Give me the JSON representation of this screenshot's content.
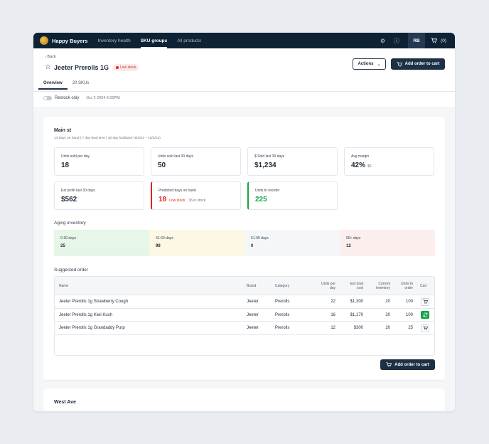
{
  "nav": {
    "brand": "Happy Buyers",
    "links": [
      "Inventory health",
      "SKU groups",
      "All products"
    ],
    "active": "SKU groups",
    "avatar": "RB",
    "cart_count": "(0)"
  },
  "header": {
    "back": "‹ Back",
    "title": "Jeeter Prerolls 1G",
    "badge": "Low stock",
    "actions_label": "Actions",
    "add_to_cart_label": "Add order to cart"
  },
  "tabs": [
    "Overview",
    "20 SKUs"
  ],
  "filter": {
    "toggle_label": "Restock only",
    "date": "Oct 2 2024 6:00PM"
  },
  "locations": [
    {
      "name": "Main st",
      "subtitle": "14 days on hand  |  7 day lead time  |  30 day lookback  (9/3/24 – 10/2/24)",
      "stats": [
        {
          "label": "Units sold per day",
          "value": "18"
        },
        {
          "label": "Units sold last 30 days",
          "value": "50"
        },
        {
          "label": "$ Sold last 30 days",
          "value": "$1,234"
        },
        {
          "label": "Avg margin",
          "value": "42%",
          "extra": "$5"
        },
        {
          "label": "Est profit last 30 days",
          "value": "$562"
        },
        {
          "label": "Predicted days on hand",
          "value": "18",
          "sub_red": "Low stock",
          "sub_grey": "36 in stock"
        },
        {
          "label": "Units to reorder",
          "value": "225"
        }
      ],
      "aging_title": "Aging inventory",
      "aging": [
        {
          "label": "0-30 days",
          "value": "25",
          "color": "#e6f6e8"
        },
        {
          "label": "31-60 days",
          "value": "98",
          "color": "#fdf8e4"
        },
        {
          "label": "61-90 days",
          "value": "0",
          "color": "#f4f6f8"
        },
        {
          "label": "90+ days",
          "value": "12",
          "color": "#fdeeee"
        }
      ],
      "suggested_title": "Suggested order",
      "table": {
        "headers": {
          "name": "Name",
          "brand": "Brand",
          "category": "Category",
          "units_per_day_1": "Units per",
          "units_per_day_2": "day",
          "est_cost_1": "Est total",
          "est_cost_2": "cost",
          "current_inv_1": "Current",
          "current_inv_2": "inventory",
          "to_order_1": "Units to",
          "to_order_2": "order",
          "cart": "Cart"
        },
        "rows": [
          {
            "name": "Jeeter Prerolls 1g Strawberry Cough",
            "brand": "Jeeter",
            "category": "Prerolls",
            "units_per_day": "22",
            "est_cost": "$1,300",
            "current_inventory": "20",
            "to_order": "100",
            "in_cart": false
          },
          {
            "name": "Jeeter Prerolls 1g Kiwi Kush",
            "brand": "Jeeter",
            "category": "Prerolls",
            "units_per_day": "16",
            "est_cost": "$1,170",
            "current_inventory": "20",
            "to_order": "100",
            "in_cart": true
          },
          {
            "name": "Jeeter Prerolls 1g Grandaddy Purp",
            "brand": "Jeeter",
            "category": "Prerolls",
            "units_per_day": "12",
            "est_cost": "$300",
            "current_inventory": "20",
            "to_order": "25",
            "in_cart": false
          }
        ]
      },
      "add_to_cart_label": "Add order to cart"
    },
    {
      "name": "West Ave"
    }
  ]
}
